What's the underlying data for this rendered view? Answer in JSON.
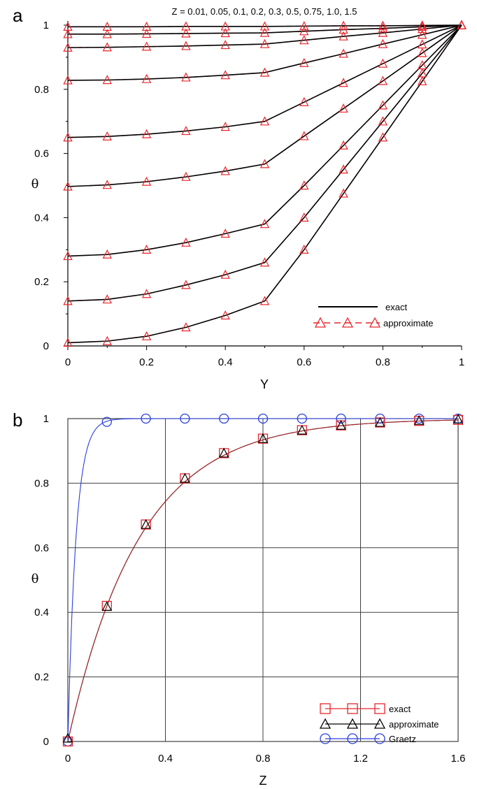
{
  "panels": {
    "a": {
      "label": "a"
    },
    "b": {
      "label": "b"
    }
  },
  "colors": {
    "exact_a": "#000000",
    "approx_a": "#e8262c",
    "exact_b": "#e8262c",
    "approx_b": "#000000",
    "graetz": "#2b3fe0",
    "grid": "#404040"
  },
  "chart_data": [
    {
      "type": "line",
      "panel": "a",
      "annotation": "Z = 0.01, 0.05, 0.1, 0.2, 0.3, 0.5, 0.75, 1.0, 1.5",
      "xlabel": "Y",
      "ylabel": "θ",
      "xlim": [
        0,
        1
      ],
      "ylim": [
        0,
        1
      ],
      "xticks": [
        "0",
        "0.2",
        "0.4",
        "0.6",
        "0.8",
        "1"
      ],
      "yticks": [
        "0",
        "0.2",
        "0.4",
        "0.6",
        "0.8",
        "1"
      ],
      "grid": false,
      "legend_position": "bottom-right",
      "legend": [
        {
          "label": "exact",
          "style": "solid line"
        },
        {
          "label": "approximate",
          "style": "dashed line with triangles"
        }
      ],
      "x": [
        0,
        0.1,
        0.2,
        0.3,
        0.4,
        0.5,
        0.6,
        0.7,
        0.8,
        0.9,
        1.0
      ],
      "series": [
        {
          "values": [
            0.01,
            0.015,
            0.03,
            0.058,
            0.095,
            0.14,
            0.3,
            0.475,
            0.65,
            0.825,
            1.0
          ]
        },
        {
          "values": [
            0.14,
            0.145,
            0.162,
            0.19,
            0.222,
            0.26,
            0.4,
            0.55,
            0.7,
            0.85,
            1.0
          ]
        },
        {
          "values": [
            0.28,
            0.285,
            0.3,
            0.322,
            0.35,
            0.38,
            0.5,
            0.625,
            0.75,
            0.875,
            1.0
          ]
        },
        {
          "values": [
            0.497,
            0.502,
            0.512,
            0.527,
            0.545,
            0.567,
            0.654,
            0.74,
            0.826,
            0.913,
            1.0
          ]
        },
        {
          "values": [
            0.65,
            0.653,
            0.66,
            0.67,
            0.683,
            0.7,
            0.76,
            0.82,
            0.88,
            0.94,
            1.0
          ]
        },
        {
          "values": [
            0.828,
            0.829,
            0.832,
            0.837,
            0.844,
            0.852,
            0.882,
            0.911,
            0.941,
            0.97,
            1.0
          ]
        },
        {
          "values": [
            0.93,
            0.931,
            0.933,
            0.935,
            0.938,
            0.941,
            0.953,
            0.965,
            0.976,
            0.988,
            1.0
          ]
        },
        {
          "values": [
            0.972,
            0.972,
            0.973,
            0.974,
            0.975,
            0.976,
            0.981,
            0.986,
            0.99,
            0.995,
            1.0
          ]
        },
        {
          "values": [
            0.995,
            0.995,
            0.995,
            0.996,
            0.996,
            0.996,
            0.997,
            0.998,
            0.998,
            0.999,
            1.0
          ]
        }
      ]
    },
    {
      "type": "line",
      "panel": "b",
      "xlabel": "Z",
      "ylabel": "θ",
      "xlim": [
        0,
        1.6
      ],
      "ylim": [
        0,
        1
      ],
      "xticks": [
        "0",
        "0.4",
        "0.8",
        "1.2",
        "1.6"
      ],
      "yticks": [
        "0",
        "0.2",
        "0.4",
        "0.6",
        "0.8",
        "1"
      ],
      "grid": true,
      "legend_position": "bottom-right",
      "series": [
        {
          "name": "exact",
          "marker": "square",
          "x": [
            0,
            0.16,
            0.32,
            0.48,
            0.64,
            0.8,
            0.96,
            1.12,
            1.28,
            1.44,
            1.6
          ],
          "values": [
            0.0,
            0.42,
            0.672,
            0.815,
            0.893,
            0.938,
            0.964,
            0.979,
            0.988,
            0.993,
            0.996
          ]
        },
        {
          "name": "approximate",
          "marker": "triangle",
          "x": [
            0,
            0.16,
            0.32,
            0.48,
            0.64,
            0.8,
            0.96,
            1.12,
            1.28,
            1.44,
            1.6
          ],
          "values": [
            0.01,
            0.418,
            0.672,
            0.815,
            0.893,
            0.938,
            0.964,
            0.979,
            0.988,
            0.994,
            0.998
          ]
        },
        {
          "name": "Graetz",
          "marker": "circle",
          "x": [
            0,
            0.16,
            0.32,
            0.48,
            0.64,
            0.8,
            0.96,
            1.12,
            1.28,
            1.44,
            1.6
          ],
          "values": [
            0.0,
            0.99,
            1.0,
            1.0,
            1.0,
            1.0,
            1.0,
            1.0,
            1.0,
            1.0,
            1.0
          ]
        }
      ]
    }
  ]
}
